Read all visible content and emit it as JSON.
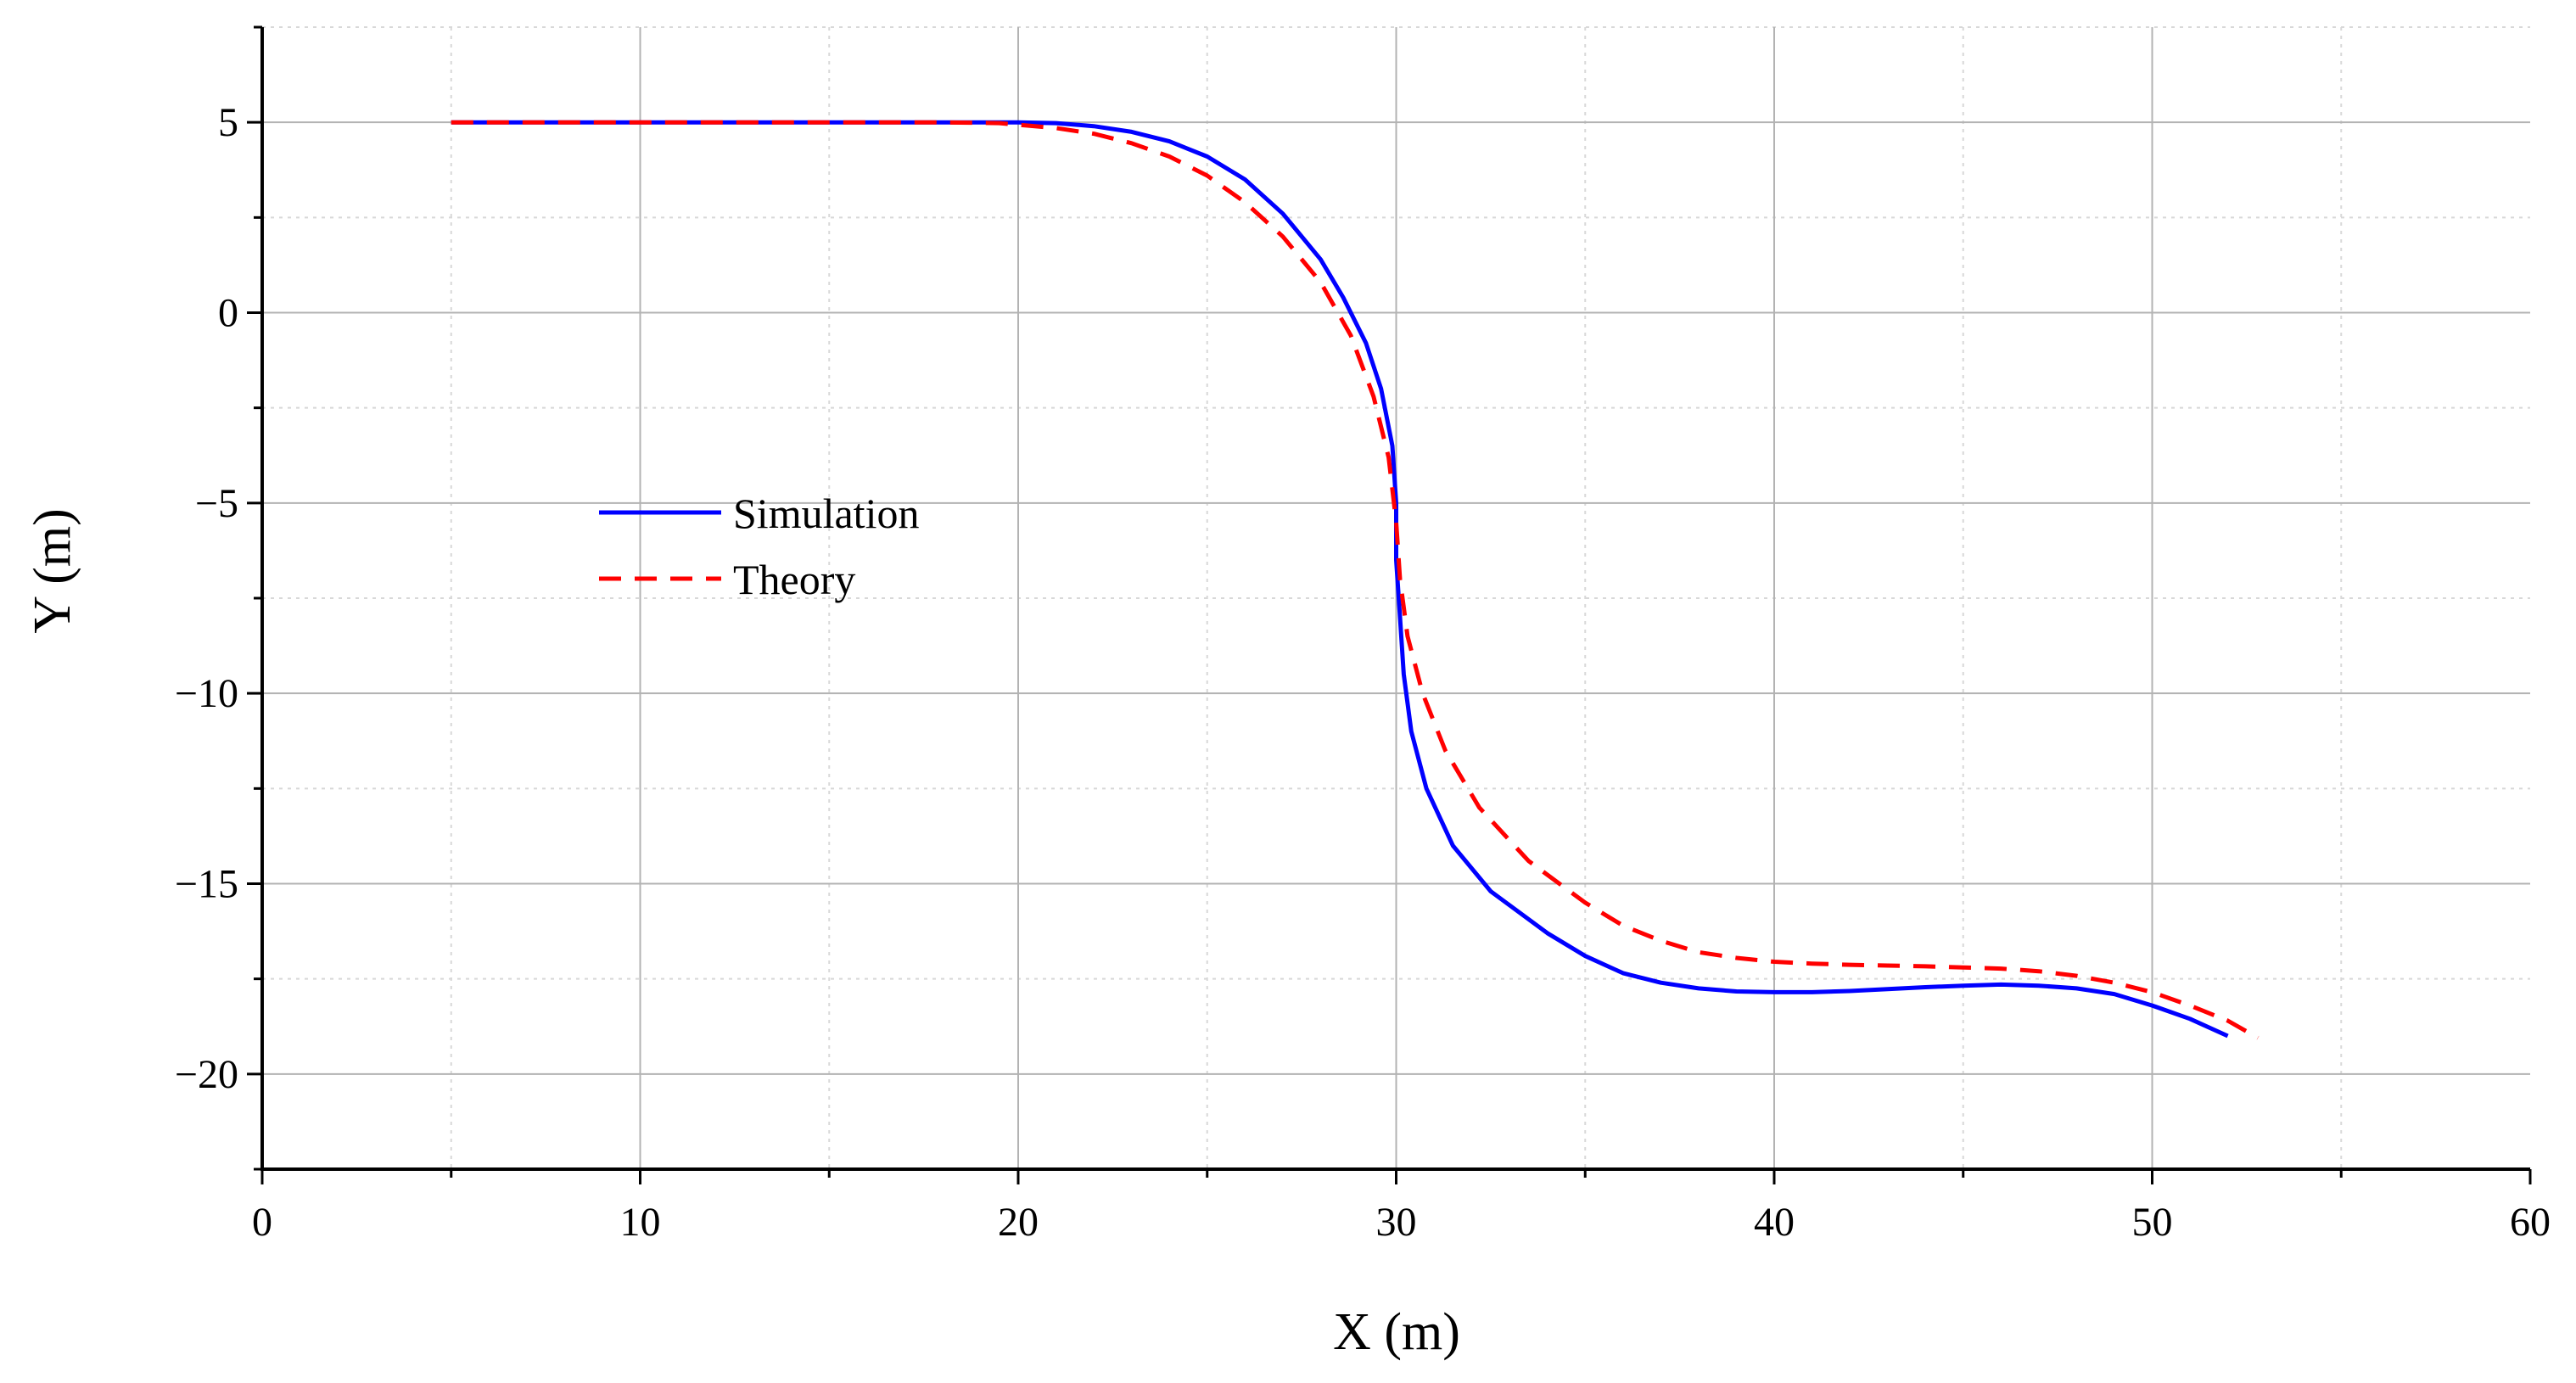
{
  "chart_data": {
    "type": "line",
    "title": "",
    "xlabel": "X (m)",
    "ylabel": "Y (m)",
    "xlim": [
      0,
      60
    ],
    "ylim": [
      -22.5,
      7.5
    ],
    "xticks": [
      0,
      10,
      20,
      30,
      40,
      50,
      60
    ],
    "yticks": [
      5,
      0,
      -5,
      -10,
      -15,
      -20
    ],
    "xtick_labels": [
      "0",
      "10",
      "20",
      "30",
      "40",
      "50",
      "60"
    ],
    "ytick_labels": [
      "5",
      "0",
      "−5",
      "−10",
      "−15",
      "−20"
    ],
    "grid": true,
    "legend_position": "center-left",
    "series": [
      {
        "name": "Simulation",
        "color": "#0000ff",
        "style": "solid",
        "points": [
          [
            5,
            5
          ],
          [
            10,
            5
          ],
          [
            15,
            5
          ],
          [
            18,
            5
          ],
          [
            20,
            5
          ],
          [
            21,
            4.98
          ],
          [
            22,
            4.9
          ],
          [
            23,
            4.75
          ],
          [
            24,
            4.5
          ],
          [
            25,
            4.1
          ],
          [
            26,
            3.5
          ],
          [
            27,
            2.6
          ],
          [
            28,
            1.4
          ],
          [
            28.6,
            0.4
          ],
          [
            29.2,
            -0.8
          ],
          [
            29.6,
            -2
          ],
          [
            29.9,
            -3.5
          ],
          [
            30,
            -5
          ],
          [
            30,
            -6.5
          ],
          [
            30.1,
            -8
          ],
          [
            30.2,
            -9.5
          ],
          [
            30.4,
            -11
          ],
          [
            30.8,
            -12.5
          ],
          [
            31.5,
            -14
          ],
          [
            32.5,
            -15.2
          ],
          [
            34,
            -16.3
          ],
          [
            35,
            -16.9
          ],
          [
            36,
            -17.35
          ],
          [
            37,
            -17.6
          ],
          [
            38,
            -17.75
          ],
          [
            39,
            -17.83
          ],
          [
            40,
            -17.85
          ],
          [
            41,
            -17.85
          ],
          [
            42,
            -17.82
          ],
          [
            43,
            -17.77
          ],
          [
            44,
            -17.72
          ],
          [
            45,
            -17.68
          ],
          [
            46,
            -17.65
          ],
          [
            47,
            -17.68
          ],
          [
            48,
            -17.75
          ],
          [
            49,
            -17.9
          ],
          [
            50,
            -18.2
          ],
          [
            51,
            -18.55
          ],
          [
            52,
            -19
          ]
        ]
      },
      {
        "name": "Theory",
        "color": "#ff0000",
        "style": "dashed",
        "points": [
          [
            5,
            5
          ],
          [
            10,
            5
          ],
          [
            15,
            5
          ],
          [
            18,
            5
          ],
          [
            19.5,
            4.98
          ],
          [
            21,
            4.85
          ],
          [
            22,
            4.7
          ],
          [
            23,
            4.45
          ],
          [
            24,
            4.1
          ],
          [
            25,
            3.6
          ],
          [
            26,
            2.9
          ],
          [
            27,
            2
          ],
          [
            28,
            0.8
          ],
          [
            28.8,
            -0.6
          ],
          [
            29.4,
            -2.2
          ],
          [
            29.8,
            -3.8
          ],
          [
            30,
            -5.5
          ],
          [
            30.1,
            -7
          ],
          [
            30.3,
            -8.5
          ],
          [
            30.7,
            -10
          ],
          [
            31.3,
            -11.5
          ],
          [
            32.2,
            -13
          ],
          [
            33.5,
            -14.4
          ],
          [
            35,
            -15.5
          ],
          [
            36,
            -16.1
          ],
          [
            37,
            -16.5
          ],
          [
            38,
            -16.8
          ],
          [
            39,
            -16.95
          ],
          [
            40,
            -17.05
          ],
          [
            41,
            -17.1
          ],
          [
            42,
            -17.13
          ],
          [
            43,
            -17.15
          ],
          [
            44,
            -17.17
          ],
          [
            45,
            -17.2
          ],
          [
            46,
            -17.23
          ],
          [
            47,
            -17.3
          ],
          [
            48,
            -17.42
          ],
          [
            49,
            -17.6
          ],
          [
            50,
            -17.85
          ],
          [
            51,
            -18.2
          ],
          [
            52,
            -18.6
          ],
          [
            52.8,
            -19.05
          ]
        ]
      }
    ]
  }
}
